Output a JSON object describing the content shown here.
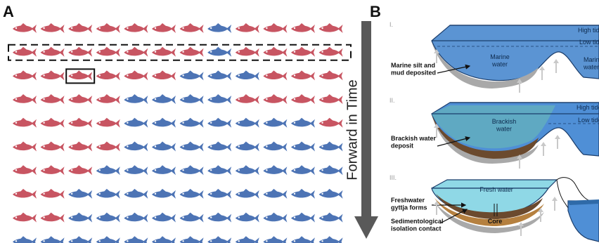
{
  "panel_a": {
    "letter": "A",
    "rows": [
      "RRRRRRRBRRRR",
      "RRRRRRRBRRRR",
      "RRRRRRBBBRRR",
      "RRRRBBBBRRRR",
      "RRRRBBBBBBBR",
      "RRRRBBBBBBBB",
      "RRRBBBBBBBBB",
      "RRBBBBBBBBBB",
      "RRBBBBBBBBBB",
      "BBBBBBBBBBBB"
    ],
    "colors": {
      "R": "#c85562",
      "B": "#4d74b5"
    },
    "highlighted_row": 1,
    "highlighted_fish": {
      "row": 2,
      "col": 2
    },
    "time_label": "Forward in Time"
  },
  "panel_b": {
    "letter": "B",
    "stages": [
      {
        "numeral": "I.",
        "water_label": "Marine\nwater",
        "right_label": "Marine\nwater",
        "high_tide": "High tide",
        "low_tide": "Low tide",
        "deposit_label": "Marine silt and\nmud deposited",
        "colors": {
          "basin": "#5b94d3",
          "deposit": "#a9a9a9"
        }
      },
      {
        "numeral": "II.",
        "water_label": "Brackish\nwater",
        "high_tide": "High tide",
        "low_tide": "Low tide",
        "deposit_label": "Brackish water\ndeposit",
        "colors": {
          "basin": "#5fa9c2",
          "deposit": "#6b4a2e"
        }
      },
      {
        "numeral": "III.",
        "water_label": "Fresh water",
        "deposit_label": "Freshwater\ngyttja forms",
        "contact_label": "Sedimentological\nisolation contact",
        "core_label": "Core",
        "colors": {
          "basin": "#8fd8e6",
          "deposit": "#b5803f"
        }
      }
    ],
    "colors": {
      "sea": "#4f8fd6",
      "grey_arrow": "#c9c9c9"
    }
  }
}
